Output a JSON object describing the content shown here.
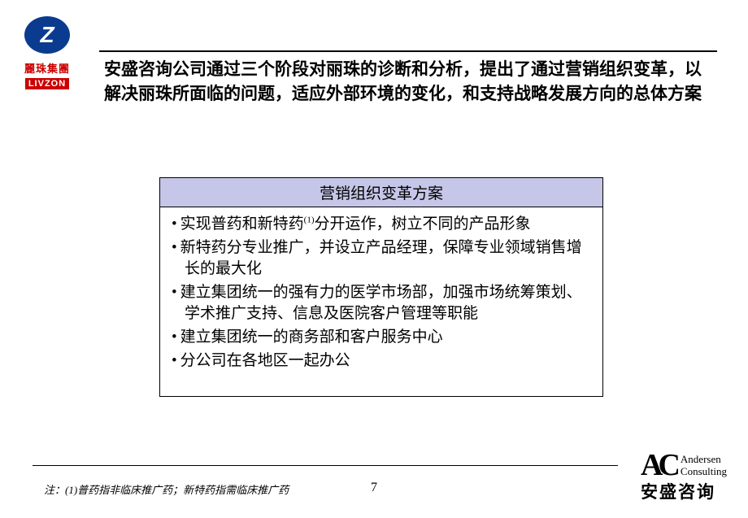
{
  "logo": {
    "mark": "Z",
    "cn": "麗珠集團",
    "en": "LIVZON"
  },
  "title": "安盛咨询公司通过三个阶段对丽珠的诊断和分析，提出了通过营销组织变革，以解决丽珠所面临的问题，适应外部环境的变化，和支持战略发展方向的总体方案",
  "box": {
    "header": "营销组织变革方案",
    "header_bg": "#c6c6e8",
    "items": [
      "实现普药和新特药(1)分开运作，树立不同的产品形象",
      "新特药分专业推广，并设立产品经理，保障专业领域销售增长的最大化",
      "建立集团统一的强有力的医学市场部，加强市场统筹策划、学术推广支持、信息及医院客户管理等职能",
      "建立集团统一的商务部和客户服务中心",
      "分公司在各地区一起办公"
    ]
  },
  "footnote": "注：(1)普药指非临床推广药；新特药指需临床推广药",
  "page_number": "7",
  "ac": {
    "mark": "AC",
    "en1": "Andersen",
    "en2": "Consulting",
    "cn": "安盛咨询"
  },
  "colors": {
    "rule": "#000000",
    "bg": "#ffffff"
  }
}
